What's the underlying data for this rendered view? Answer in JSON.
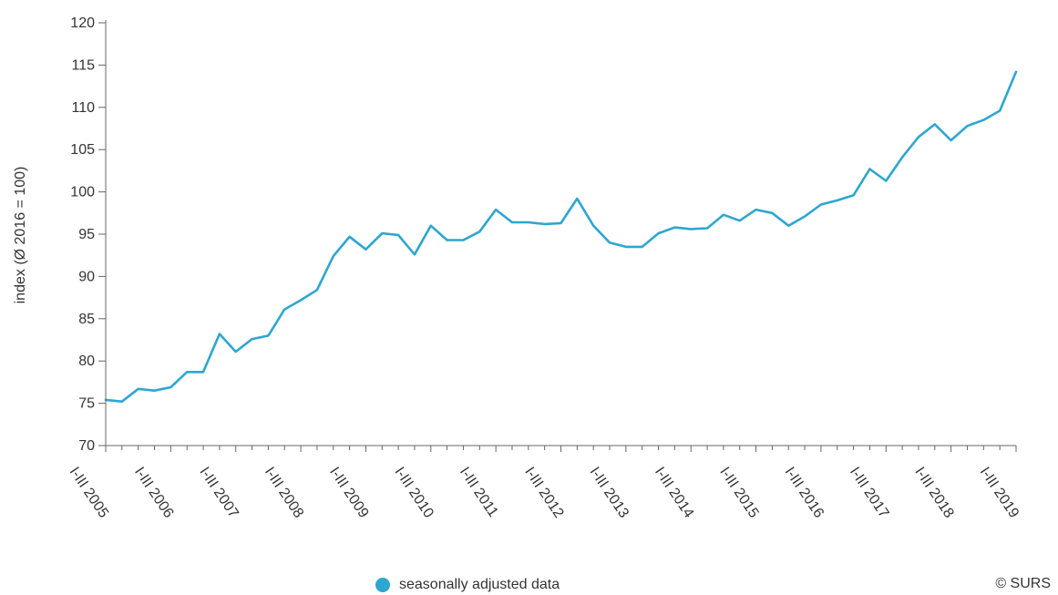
{
  "chart_data": {
    "type": "line",
    "ylabel": "index (Ø 2016 = 100)",
    "ylim": [
      70,
      120
    ],
    "yticks": [
      70,
      75,
      80,
      85,
      90,
      95,
      100,
      105,
      110,
      115,
      120
    ],
    "x_tick_labels": [
      "I-III 2005",
      "I-III 2006",
      "I-III 2007",
      "I-III 2008",
      "I-III 2009",
      "I-III 2010",
      "I-III 2011",
      "I-III 2012",
      "I-III 2013",
      "I-III 2014",
      "I-III 2015",
      "I-III 2016",
      "I-III 2017",
      "I-III 2018",
      "I-III 2019"
    ],
    "grid": false,
    "legend_position": "bottom-center",
    "series": [
      {
        "name": "seasonally adjusted data",
        "color": "#2ea6d1",
        "values": [
          75.4,
          75.2,
          76.7,
          76.5,
          76.9,
          78.7,
          78.7,
          83.2,
          81.1,
          82.6,
          83.0,
          86.1,
          87.2,
          88.4,
          92.4,
          94.7,
          93.2,
          95.1,
          94.9,
          92.6,
          96.0,
          94.3,
          94.3,
          95.3,
          97.9,
          96.4,
          96.4,
          96.2,
          96.3,
          99.2,
          96.0,
          94.0,
          93.5,
          93.5,
          95.1,
          95.8,
          95.6,
          95.7,
          97.3,
          96.6,
          97.9,
          97.5,
          96.0,
          97.1,
          98.5,
          99.0,
          99.6,
          102.7,
          101.3,
          104.1,
          106.5,
          108.0,
          106.1,
          107.8,
          108.5,
          109.6,
          114.2
        ]
      }
    ]
  },
  "legend_label": "seasonally adjusted data",
  "credit": "© SURS"
}
